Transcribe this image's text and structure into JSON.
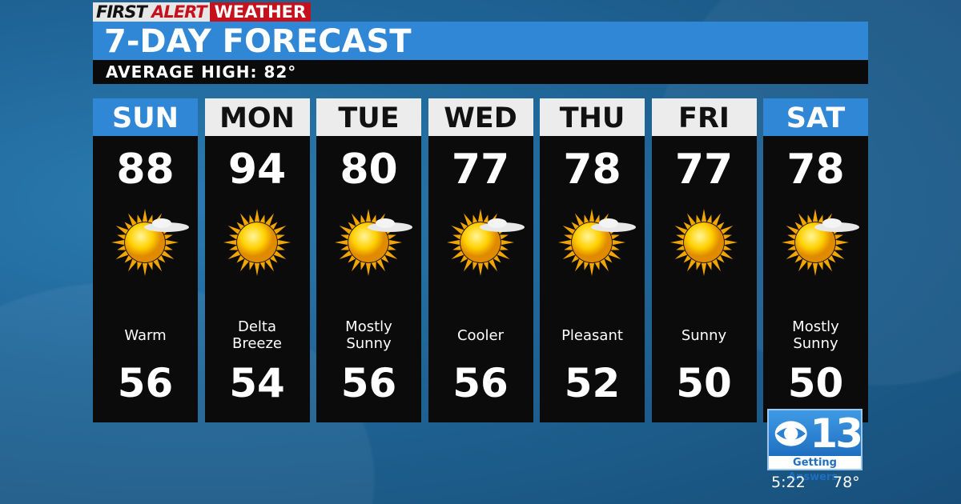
{
  "brand": {
    "first": "FIRST",
    "alert": "ALERT",
    "weather": "WEATHER"
  },
  "title": "7-DAY FORECAST",
  "subtitle": "AVERAGE HIGH: 82°",
  "colors": {
    "title_bar": "#2f87d6",
    "brand_red": "#c4111b",
    "weekend_header": "#2f87d6",
    "weekday_header": "#ececec"
  },
  "days": [
    {
      "day": "SUN",
      "high": "88",
      "low": "56",
      "desc": "Warm",
      "icon": "sun-cloud-icon",
      "weekend": true
    },
    {
      "day": "MON",
      "high": "94",
      "low": "54",
      "desc": "Delta Breeze",
      "icon": "sun-icon",
      "weekend": false
    },
    {
      "day": "TUE",
      "high": "80",
      "low": "56",
      "desc": "Mostly Sunny",
      "icon": "sun-cloud-icon",
      "weekend": false
    },
    {
      "day": "WED",
      "high": "77",
      "low": "56",
      "desc": "Cooler",
      "icon": "sun-cloud-icon",
      "weekend": false
    },
    {
      "day": "THU",
      "high": "78",
      "low": "52",
      "desc": "Pleasant",
      "icon": "sun-cloud-icon",
      "weekend": false
    },
    {
      "day": "FRI",
      "high": "77",
      "low": "50",
      "desc": "Sunny",
      "icon": "sun-icon",
      "weekend": false
    },
    {
      "day": "SAT",
      "high": "78",
      "low": "50",
      "desc": "Mostly Sunny",
      "icon": "sun-cloud-icon",
      "weekend": true
    }
  ],
  "station": {
    "number": "13",
    "tagline": "Getting Answers.",
    "time": "5:22",
    "temp": "78°"
  }
}
